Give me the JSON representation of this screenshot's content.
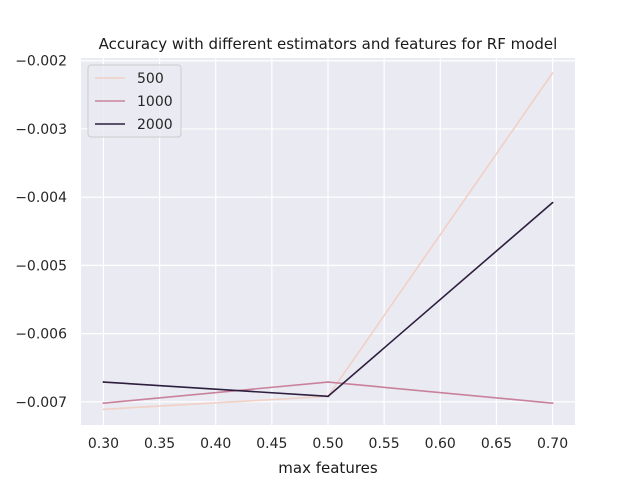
{
  "chart_data": {
    "type": "line",
    "title": "Accuracy with different estimators and features for RF model",
    "xlabel": "max features",
    "ylabel": "",
    "x": [
      0.3,
      0.5,
      0.7
    ],
    "x_ticks": [
      "0.30",
      "0.35",
      "0.40",
      "0.45",
      "0.50",
      "0.55",
      "0.60",
      "0.65",
      "0.70"
    ],
    "y_ticks": [
      "−0.002",
      "−0.003",
      "−0.004",
      "−0.005",
      "−0.006",
      "−0.007"
    ],
    "xlim": [
      0.28,
      0.72
    ],
    "ylim": [
      -0.00734,
      -0.00196
    ],
    "grid": true,
    "legend_position": "top-left",
    "series": [
      {
        "name": "500",
        "values": [
          -0.00711,
          -0.00692,
          -0.00218
        ],
        "color": "#f1d0c6"
      },
      {
        "name": "1000",
        "values": [
          -0.00702,
          -0.00671,
          -0.00702
        ],
        "color": "#c9819b"
      },
      {
        "name": "2000",
        "values": [
          -0.00671,
          -0.00692,
          -0.00408
        ],
        "color": "#2d1e3e"
      }
    ]
  }
}
